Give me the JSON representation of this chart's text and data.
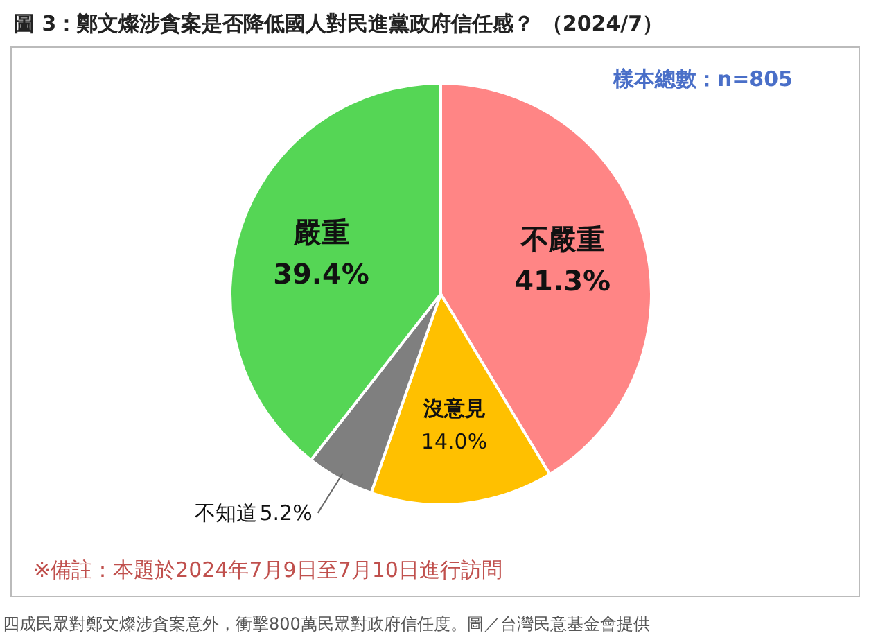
{
  "chart_data": {
    "type": "pie",
    "title": "圖 3：鄭文燦涉貪案是否降低國人對民進黨政府信任感？ （2024/7）",
    "subtitle": "樣本總數：n=805",
    "categories": [
      "不嚴重",
      "沒意見",
      "不知道",
      "嚴重"
    ],
    "values": [
      41.3,
      14.0,
      5.2,
      39.4
    ],
    "colors": [
      "#ff8585",
      "#ffc000",
      "#7f7f7f",
      "#55d655"
    ],
    "value_labels": [
      "41.3%",
      "14.0%",
      "5.2%",
      "39.4%"
    ],
    "annotations": [
      "※備註：本題於2024年7月9日至7月10日進行訪問",
      "四成民眾對鄭文燦涉貪案意外，衝擊800萬民眾對政府信任度。圖／台灣民意基金會提供"
    ]
  }
}
